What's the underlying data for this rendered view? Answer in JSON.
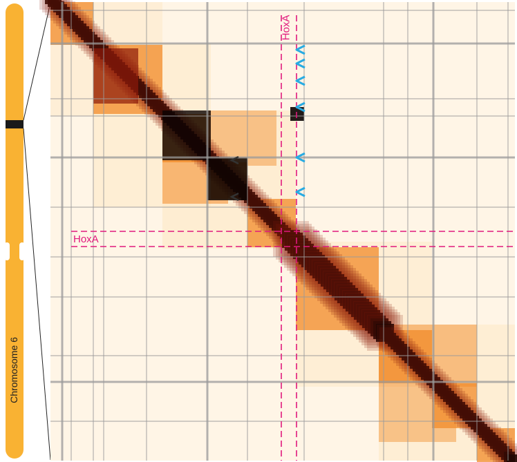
{
  "chromosome": {
    "label": "Chromosome 6",
    "body_color": "#F9B233",
    "band_color": "#1a1a1a"
  },
  "heatmap": {
    "colors": {
      "background": "#FFF5E6",
      "low": "#FDE7C4",
      "mid": "#F28B2A",
      "high": "#8B1A0A",
      "max": "#0A0302",
      "grid": "#9a9a9a"
    }
  },
  "annotations": {
    "locus_label": "HoxA",
    "locus_color": "#E0197D",
    "arrow_color": "#29ABE2",
    "dark_arrow_color": "#333333",
    "cyan_arrow_count": 6,
    "dark_arrow_count": 2
  }
}
